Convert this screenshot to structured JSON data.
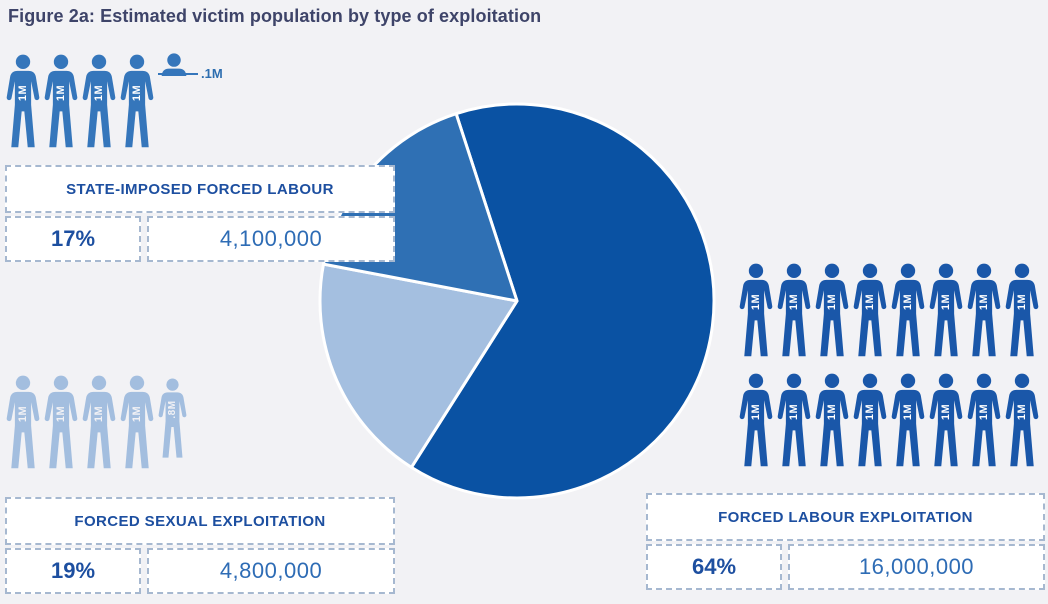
{
  "title": "Figure 2a: Estimated victim population by type of exploitation",
  "colors": {
    "background": "#f2f2f5",
    "title_text": "#3e4469",
    "label_text": "#1d4fa0",
    "value_text": "#2e6cb5",
    "pie_dark": "#0a52a3",
    "pie_medium": "#2f70b4",
    "pie_light": "#a4bfe0",
    "pictogram_dark": "#1a57a9",
    "pictogram_medium": "#3576bb",
    "pictogram_light": "#a3bedf",
    "dashed_border": "#a6b8d0"
  },
  "chart_data": {
    "type": "pie",
    "title": "Estimated victim population by type of exploitation",
    "start_angle_deg": -18,
    "clockwise": true,
    "pictogram_unit": "1M = 1,000,000 victims",
    "slices": [
      {
        "label": "FORCED LABOUR EXPLOITATION",
        "percent": 64,
        "value": 16000000,
        "display_percent": "64%",
        "display_value": "16,000,000",
        "color": "#0a52a3"
      },
      {
        "label": "FORCED SEXUAL EXPLOITATION",
        "percent": 19,
        "value": 4800000,
        "display_percent": "19%",
        "display_value": "4,800,000",
        "color": "#a4bfe0"
      },
      {
        "label": "STATE-IMPOSED FORCED LABOUR",
        "percent": 17,
        "value": 4100000,
        "display_percent": "17%",
        "display_value": "4,100,000",
        "color": "#2f70b4"
      }
    ]
  },
  "panels": {
    "state_imposed": {
      "name": "STATE-IMPOSED FORCED LABOUR",
      "percent": "17%",
      "value": "4,100,000"
    },
    "forced_sexual": {
      "name": "FORCED SEXUAL EXPLOITATION",
      "percent": "19%",
      "value": "4,800,000"
    },
    "forced_labour": {
      "name": "FORCED LABOUR EXPLOITATION",
      "percent": "64%",
      "value": "16,000,000"
    }
  },
  "pictograms": {
    "state_imposed": [
      "1M",
      "1M",
      "1M",
      "1M",
      ".1M"
    ],
    "forced_sexual": [
      "1M",
      "1M",
      "1M",
      "1M",
      ".8M"
    ],
    "forced_labour_row1": [
      "1M",
      "1M",
      "1M",
      "1M",
      "1M",
      "1M",
      "1M",
      "1M"
    ],
    "forced_labour_row2": [
      "1M",
      "1M",
      "1M",
      "1M",
      "1M",
      "1M",
      "1M",
      "1M"
    ]
  }
}
